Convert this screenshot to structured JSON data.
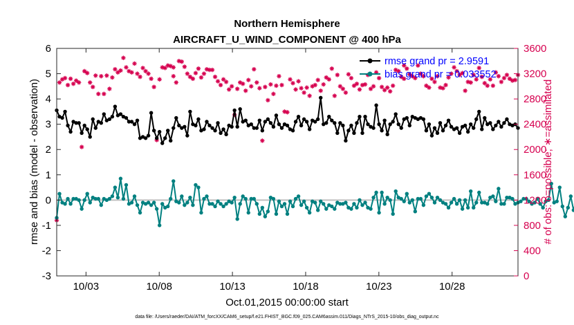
{
  "chart_data": {
    "type": "line",
    "title": "Northern Hemisphere",
    "subtitle": "AIRCRAFT_U_WIND_COMPONENT @ 400 hPa",
    "xlabel": "Oct.01,2015 00:00:00 start",
    "ylabel": "rmse and bias (model - observation)",
    "ylabel_right": "# of obs: o=possible; ∗=assimilated",
    "footnote": "data file: /Users/raeder/DAI/ATM_forcXX/CAM6_setup/f.e21.FHIST_BGC.f09_025.CAM6assim.011/Diags_NTrS_2015-10/obs_diag_output.nc",
    "xlim": [
      1,
      32.5
    ],
    "ylim": [
      -3,
      6
    ],
    "ylim_right": [
      0,
      3600
    ],
    "x_ticks": [
      3,
      8,
      13,
      18,
      23,
      28
    ],
    "x_tick_labels": [
      "10/03",
      "10/08",
      "10/13",
      "10/18",
      "10/23",
      "10/28"
    ],
    "y_ticks": [
      "-3",
      "-2",
      "-1",
      "0",
      "1",
      "2",
      "3",
      "4",
      "5",
      "6"
    ],
    "y_ticks_right": [
      "0",
      "400",
      "800",
      "1200",
      "1600",
      "2000",
      "2400",
      "2800",
      "3200",
      "3600"
    ],
    "colors": {
      "rmse": "#000000",
      "bias": "#008080",
      "obs": "#d6004f",
      "zero_line": "#bfbfbf",
      "legend_text": "#0000ff"
    },
    "series": [
      {
        "name": "rmse grand pr = 2.9591",
        "values": [
          3.55,
          3.3,
          3.25,
          3.5,
          2.95,
          2.7,
          3.1,
          3.05,
          3.05,
          2.65,
          2.95,
          2.8,
          2.5,
          3.2,
          2.85,
          3.1,
          3.05,
          3.4,
          3.15,
          3.2,
          3.3,
          3.7,
          3.35,
          3.4,
          3.3,
          3.25,
          3.1,
          3.1,
          3.0,
          3.15,
          2.45,
          2.5,
          2.45,
          2.55,
          3.45,
          2.75,
          2.45,
          2.7,
          2.25,
          2.45,
          2.75,
          2.35,
          2.85,
          3.25,
          2.95,
          2.85,
          2.9,
          2.55,
          3.5,
          3.0,
          2.95,
          3.2,
          2.75,
          2.8,
          3.1,
          2.95,
          2.85,
          2.75,
          3.05,
          2.65,
          2.8,
          2.6,
          2.95,
          2.9,
          3.55,
          2.9,
          3.6,
          3.1,
          3.15,
          2.95,
          3.0,
          2.85,
          2.85,
          3.15,
          2.75,
          3.1,
          3.2,
          3.05,
          2.9,
          3.35,
          3.0,
          2.85,
          3.0,
          2.95,
          2.8,
          2.75,
          3.1,
          3.3,
          2.95,
          3.2,
          3.1,
          2.8,
          3.15,
          3.1,
          3.2,
          4.05,
          3.0,
          3.05,
          3.3,
          3.15,
          3.05,
          2.65,
          3.05,
          2.95,
          2.35,
          2.75,
          2.95,
          2.65,
          3.05,
          3.3,
          2.65,
          3.3,
          3.0,
          2.9,
          2.85,
          3.75,
          3.0,
          2.75,
          3.15,
          2.6,
          3.0,
          3.1,
          3.4,
          3.0,
          2.85,
          3.2,
          3.25,
          2.95,
          3.3,
          3.25,
          3.2,
          3.25,
          3.2,
          2.75,
          3.0,
          2.55,
          2.85,
          2.65,
          3.05,
          2.75,
          2.95,
          3.15,
          2.9,
          2.8,
          2.85,
          2.65,
          2.9,
          2.95,
          2.7,
          3.0,
          2.85,
          3.2,
          3.5,
          2.8,
          3.25,
          3.0,
          3.05,
          2.8,
          2.95,
          3.1,
          2.9,
          3.05,
          3.2,
          3.0,
          2.95,
          3.0,
          2.85
        ]
      },
      {
        "name": "bias grand pr = 0.033552",
        "values": [
          -0.7,
          0.25,
          -0.1,
          -0.15,
          0.05,
          -0.15,
          0.05,
          0.05,
          0.0,
          -0.35,
          0.0,
          0.25,
          -0.1,
          0.1,
          0.05,
          0.05,
          -0.2,
          0.05,
          0.0,
          0.05,
          0.15,
          0.5,
          0.1,
          0.85,
          0.05,
          0.6,
          -0.15,
          -0.1,
          0.15,
          -0.2,
          -0.5,
          -0.1,
          -0.15,
          -0.1,
          -0.2,
          -0.1,
          -0.35,
          -1.0,
          -0.15,
          -0.3,
          -0.25,
          0.05,
          0.75,
          -0.05,
          -0.1,
          0.15,
          -0.2,
          -0.1,
          0.1,
          -0.2,
          0.6,
          0.5,
          -0.5,
          0.05,
          0.15,
          -0.15,
          -0.15,
          -0.25,
          -0.05,
          -0.15,
          -0.25,
          -0.15,
          -0.05,
          -0.1,
          0.1,
          -0.75,
          -0.15,
          0.15,
          0.05,
          -0.5,
          0.05,
          0.05,
          -0.15,
          -0.55,
          -0.3,
          -0.65,
          -0.45,
          0.1,
          0.05,
          -0.55,
          -0.05,
          -0.25,
          -0.15,
          -0.55,
          -0.05,
          -0.25,
          0.05,
          0.15,
          -0.2,
          -0.05,
          -0.3,
          -0.5,
          -0.05,
          -0.1,
          -0.4,
          -0.05,
          -0.15,
          -0.35,
          -0.2,
          -0.25,
          -0.35,
          -0.1,
          -0.15,
          -0.15,
          -0.1,
          -0.3,
          -0.35,
          -0.15,
          -0.3,
          0.0,
          -0.2,
          -0.1,
          -0.3,
          -0.35,
          0.1,
          0.3,
          -0.5,
          0.3,
          -0.15,
          0.1,
          0.0,
          -0.55,
          0.35,
          0.1,
          0.05,
          -0.05,
          0.25,
          -0.1,
          0.0,
          -0.45,
          0.05,
          0.05,
          -0.2,
          0.15,
          0.25,
          0.1,
          -0.1,
          0.1,
          0.0,
          -0.1,
          -0.15,
          -0.3,
          -0.1,
          0.05,
          -0.15,
          0.0,
          -0.35,
          0.0,
          -0.3,
          0.35,
          -0.3,
          -0.1,
          0.3,
          -0.1,
          -0.1,
          -0.15,
          0.1,
          0.15,
          -0.05,
          0.45,
          -0.15,
          -0.15,
          0.1,
          0.1,
          0.05,
          -0.15,
          -0.1,
          -0.05,
          0.05,
          0.05,
          -0.05,
          -0.15,
          -0.1,
          0.05,
          -0.15,
          -0.3,
          -0.05,
          0.0,
          0.65,
          -0.1,
          -0.05,
          0.5,
          -0.25,
          -0.65,
          -0.3,
          0.15,
          -0.4,
          0.0,
          -0.1
        ]
      }
    ],
    "obs_counts": [
      880,
      3060,
      3110,
      3130,
      3020,
      3120,
      3040,
      3090,
      3060,
      2040,
      3240,
      3210,
      3060,
      2990,
      3170,
      2880,
      3160,
      2880,
      3170,
      2960,
      3140,
      3270,
      3220,
      3250,
      3450,
      3300,
      3240,
      3220,
      3360,
      3200,
      3150,
      3290,
      3240,
      3200,
      3120,
      2990,
      2150,
      3110,
      3300,
      3290,
      3330,
      3320,
      3300,
      3160,
      3060,
      3400,
      3390,
      3310,
      3200,
      3150,
      3120,
      3210,
      3280,
      3140,
      3200,
      3270,
      3260,
      3260,
      3150,
      3080,
      3020,
      3110,
      3070,
      2950,
      3000,
      2550,
      2960,
      3060,
      3040,
      2930,
      3100,
      3000,
      3270,
      3060,
      2970,
      2140,
      2990,
      2780,
      3030,
      2880,
      3010,
      3160,
      3020,
      2600,
      2590,
      3110,
      3050,
      2950,
      3080,
      2970,
      2900,
      2980,
      2850,
      3000,
      3020,
      3100,
      2930,
      3030,
      3140,
      3110,
      3280,
      2850,
      3180,
      3000,
      2960,
      2900,
      3190,
      3130,
      3010,
      3040,
      2950,
      3020,
      3030,
      3180,
      2960,
      3000,
      3220,
      3130,
      2990,
      2940,
      2980,
      2920,
      3010,
      3260,
      3240,
      3150,
      3120,
      3330,
      3280,
      3190,
      3160,
      3130,
      3330,
      3200,
      3160,
      3010,
      2980,
      3120,
      3070,
      3160,
      2980,
      2970,
      3020,
      3140,
      3200,
      3300,
      3240,
      3180,
      3210,
      2930,
      3070,
      3060,
      3180,
      3110,
      3290,
      3150,
      3050,
      3010,
      3110,
      3010,
      3220,
      3160,
      3070,
      3130,
      3180,
      3120,
      3090,
      3100,
      3180
    ],
    "legend_position": "top-right"
  }
}
